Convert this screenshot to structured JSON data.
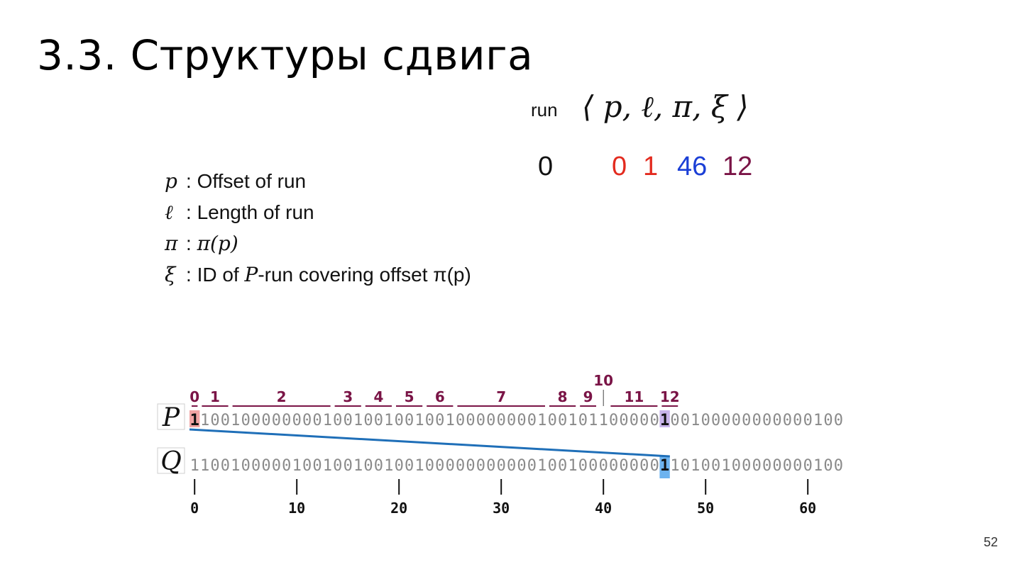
{
  "title": "3.3. Структуры сдвига",
  "tuple": {
    "run_label": "run",
    "notation": "⟨ p,  ℓ,  π,  ξ ⟩",
    "values": {
      "run": "0",
      "p": "0",
      "l": "1",
      "pi": "46",
      "xi": "12"
    },
    "colors": {
      "p": "#e32b1f",
      "l": "#e32b1f",
      "pi": "#1b3fd6",
      "xi": "#7a1446"
    }
  },
  "definitions": [
    {
      "symbol": "p",
      "pre": "Offset of run",
      "sym2": "",
      "post": ""
    },
    {
      "symbol": "ℓ",
      "pre": "Length of run",
      "sym2": "",
      "post": ""
    },
    {
      "symbol": "π",
      "pre": "",
      "sym2": "π(p)",
      "post": ""
    },
    {
      "symbol": "ξ",
      "pre": "ID of ",
      "sym2": "P",
      "post": "-run covering offset π(p)"
    }
  ],
  "figure": {
    "p_label": "P",
    "q_label": "Q",
    "p_bits": "1100100000000100100100100100000000100101100000100100000000000100",
    "q_bits": "1100100000100100100100100000000000100100000000110100100000000100",
    "run_labels": [
      "0",
      "1",
      "2",
      "3",
      "4",
      "5",
      "6",
      "7",
      "8",
      "9",
      "10",
      "11",
      "12"
    ],
    "run_starts": [
      0,
      1,
      4,
      14,
      17,
      20,
      23,
      26,
      35,
      38,
      40,
      41,
      46
    ],
    "highlight_p_index": 0,
    "highlight_p2_index": 46,
    "highlight_q_index": 46,
    "axis_ticks": [
      "0",
      "10",
      "20",
      "30",
      "40",
      "50",
      "60"
    ],
    "colors": {
      "run_label": "#7a1446",
      "bits": "#8a8a8a",
      "link": "#1f6fb8",
      "hl_p": "#f2a4a4",
      "hl_p2": "#c8b4ea",
      "hl_q": "#6db3ef"
    }
  },
  "page_number": "52"
}
